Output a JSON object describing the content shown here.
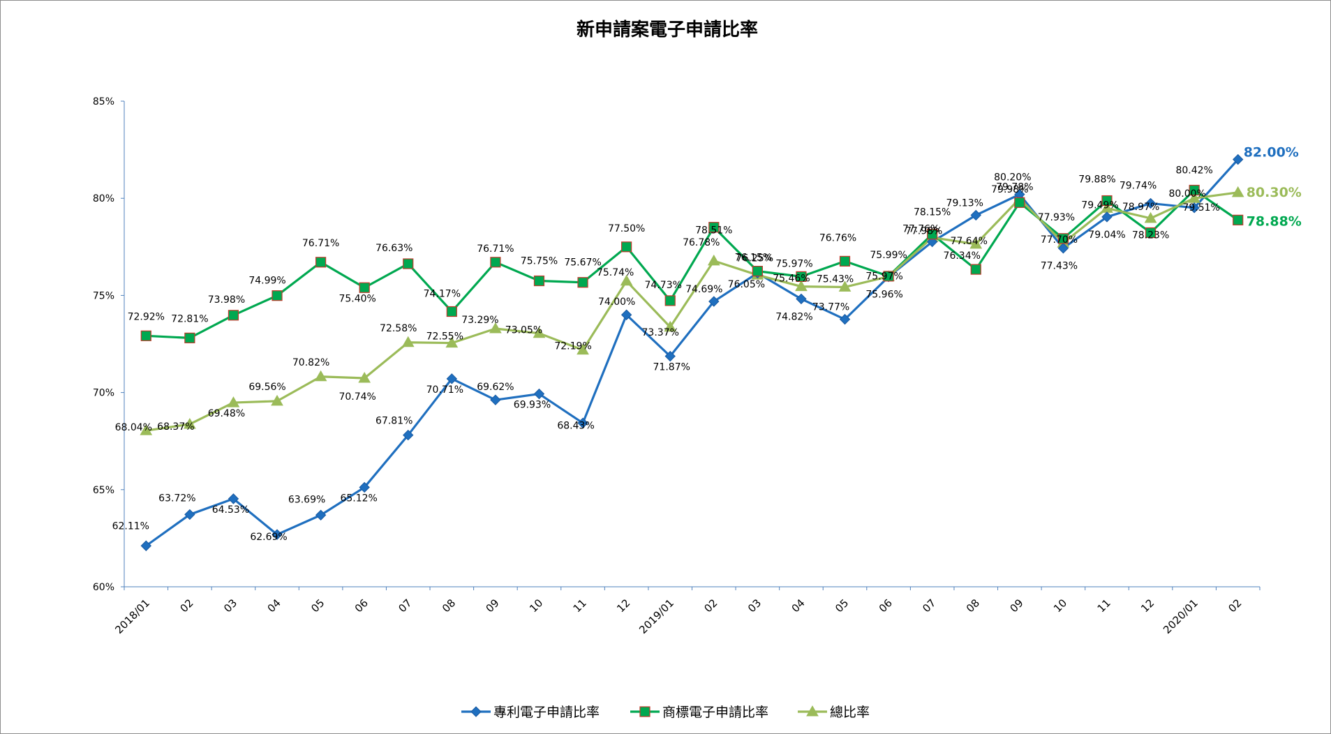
{
  "chart_data": {
    "type": "line",
    "title": "新申請案電子申請比率",
    "ylim": [
      60,
      85
    ],
    "yticks": [
      60,
      65,
      70,
      75,
      80,
      85
    ],
    "ytick_labels": [
      "60%",
      "65%",
      "70%",
      "75%",
      "80%",
      "85%"
    ],
    "grid": false,
    "legend": "bottom",
    "categories": [
      "2018/01",
      "02",
      "03",
      "04",
      "05",
      "06",
      "07",
      "08",
      "09",
      "10",
      "11",
      "12",
      "2019/01",
      "02",
      "03",
      "04",
      "05",
      "06",
      "07",
      "08",
      "09",
      "10",
      "11",
      "12",
      "2020/01",
      "02"
    ],
    "series": [
      {
        "name": "專利電子申請比率",
        "color": "#1f6fbf",
        "marker": "diamond",
        "values": [
          62.11,
          63.72,
          64.53,
          62.69,
          63.69,
          65.12,
          67.81,
          70.71,
          69.62,
          69.93,
          68.43,
          74.0,
          71.87,
          74.69,
          76.15,
          74.82,
          73.77,
          75.96,
          77.76,
          79.13,
          80.2,
          77.43,
          79.04,
          79.74,
          79.51,
          82.0
        ],
        "labels": [
          "62.11%",
          "63.72%",
          "64.53%",
          "62.69%",
          "63.69%",
          "65.12%",
          "67.81%",
          "70.71%",
          "69.62%",
          "69.93%",
          "68.43%",
          "74.00%",
          "71.87%",
          "74.69%",
          "76.15%",
          "74.82%",
          "73.77%",
          "75.96%",
          "77.76%",
          "79.13%",
          "80.20%",
          "77.43%",
          "79.04%",
          "79.74%",
          "79.51%",
          "82.00%"
        ]
      },
      {
        "name": "商標電子申請比率",
        "color": "#00a850",
        "marker": "square",
        "values": [
          72.92,
          72.81,
          73.98,
          74.99,
          76.71,
          75.4,
          76.63,
          74.17,
          76.71,
          75.75,
          75.67,
          77.5,
          74.73,
          78.51,
          76.25,
          75.97,
          76.76,
          75.99,
          78.15,
          76.34,
          79.78,
          77.93,
          79.88,
          78.23,
          80.42,
          78.88
        ],
        "labels": [
          "72.92%",
          "72.81%",
          "73.98%",
          "74.99%",
          "76.71%",
          "75.40%",
          "76.63%",
          "74.17%",
          "76.71%",
          "75.75%",
          "75.67%",
          "77.50%",
          "74.73%",
          "78.51%",
          "76.25%",
          "75.97%",
          "76.76%",
          "75.99%",
          "78.15%",
          "76.34%",
          "79.78%",
          "77.93%",
          "79.88%",
          "78.23%",
          "80.42%",
          "78.88%"
        ]
      },
      {
        "name": "總比率",
        "color": "#9bbb59",
        "marker": "triangle",
        "values": [
          68.04,
          68.37,
          69.48,
          69.56,
          70.82,
          70.74,
          72.58,
          72.55,
          73.29,
          73.05,
          72.19,
          75.74,
          73.37,
          76.78,
          76.05,
          75.46,
          75.43,
          75.97,
          77.98,
          77.64,
          79.98,
          77.7,
          79.49,
          78.97,
          80.0,
          80.3
        ],
        "labels": [
          "68.04%",
          "68.37%",
          "69.48%",
          "69.56%",
          "70.82%",
          "70.74%",
          "72.58%",
          "72.55%",
          "73.29%",
          "73.05%",
          "72.19%",
          "75.74%",
          "73.37%",
          "76.78%",
          "76.05%",
          "75.46%",
          "75.43%",
          "75.97%",
          "77.98%",
          "77.64%",
          "79.98%",
          "77.70%",
          "79.49%",
          "78.97%",
          "80.00%",
          "80.30%"
        ]
      }
    ]
  }
}
